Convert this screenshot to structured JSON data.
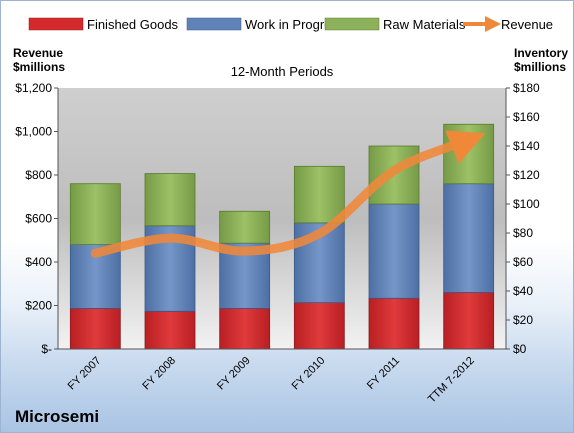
{
  "chart_data": {
    "type": "bar",
    "stacked": true,
    "subtitle": "12-Month Periods",
    "company": "Microsemi",
    "left_axis": {
      "title_line1": "Revenue",
      "title_line2": "$millions",
      "ylim": [
        0,
        1200
      ],
      "ticks": [
        0,
        200,
        400,
        600,
        800,
        1000,
        1200
      ],
      "tick_labels": [
        "$-",
        "$200",
        "$400",
        "$600",
        "$800",
        "$1,000",
        "$1,200"
      ]
    },
    "right_axis": {
      "title_line1": "Inventory",
      "title_line2": "$millions",
      "ylim": [
        0,
        180
      ],
      "ticks": [
        0,
        20,
        40,
        60,
        80,
        100,
        120,
        140,
        160,
        180
      ],
      "tick_labels": [
        "$0",
        "$20",
        "$40",
        "$60",
        "$80",
        "$100",
        "$120",
        "$140",
        "$160",
        "$180"
      ]
    },
    "categories": [
      "FY 2007",
      "FY 2008",
      "FY 2009",
      "FY 2010",
      "FY 2011",
      "TTM 7-2012"
    ],
    "series": [
      {
        "name": "Finished Goods",
        "kind": "bar",
        "axis": "right",
        "color": "#d42a2e",
        "values": [
          28,
          26,
          28,
          32,
          35,
          39
        ]
      },
      {
        "name": "Work in Progress",
        "kind": "bar",
        "axis": "right",
        "color": "#5f82b8",
        "values": [
          44,
          59,
          45,
          55,
          65,
          75
        ]
      },
      {
        "name": "Raw Materials",
        "kind": "bar",
        "axis": "right",
        "color": "#8db05a",
        "values": [
          42,
          36,
          22,
          39,
          40,
          41
        ]
      },
      {
        "name": "Revenue",
        "kind": "line",
        "axis": "left",
        "color": "#f0883a",
        "values": [
          440,
          510,
          450,
          530,
          820,
          960
        ]
      }
    ],
    "legend_position": "top",
    "grid": false
  }
}
